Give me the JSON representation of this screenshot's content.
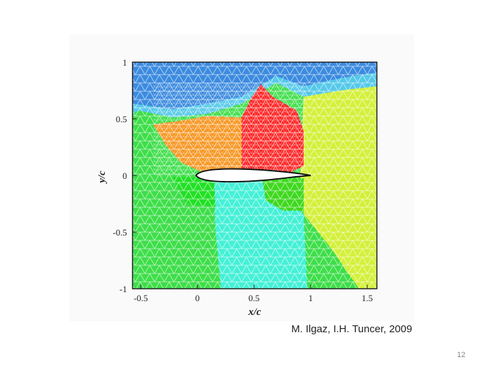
{
  "figure": {
    "xlabel": "x/c",
    "ylabel": "y/c",
    "xticks": [
      "-0.5",
      "0",
      "0.5",
      "1",
      "1.5"
    ],
    "yticks": [
      "1",
      "0.5",
      "0",
      "-0.5",
      "-1"
    ]
  },
  "caption": "M. Ilgaz, I.H. Tuncer, 2009",
  "page_number": "12"
}
